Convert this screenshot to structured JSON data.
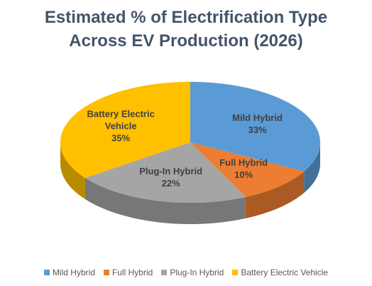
{
  "chart_data": {
    "type": "pie3d",
    "title": "Estimated % of Electrification Type Across EV Production (2026)",
    "categories": [
      "Mild Hybrid",
      "Full Hybrid",
      "Plug-In Hybrid",
      "Battery Electric Vehicle"
    ],
    "values": [
      33,
      10,
      22,
      35
    ],
    "value_labels": [
      "33%",
      "10%",
      "22%",
      "35%"
    ],
    "colors": [
      "#5b9bd5",
      "#ed7d31",
      "#a5a5a5",
      "#ffc000"
    ],
    "legend": "bottom"
  }
}
